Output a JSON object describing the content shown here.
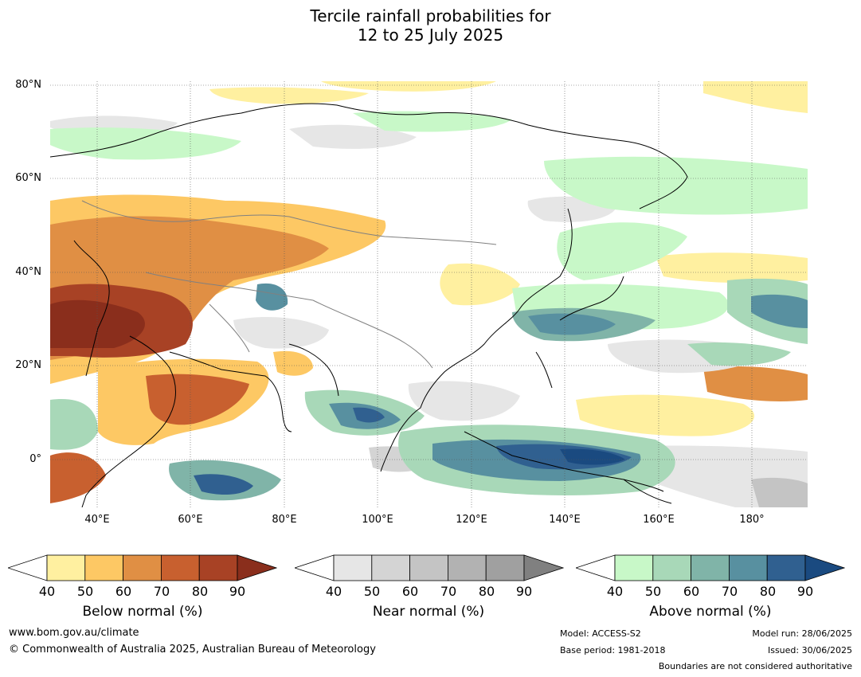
{
  "title": {
    "line1": "Tercile rainfall probabilities for",
    "line2": "12 to 25 July 2025"
  },
  "map": {
    "lat_labels": [
      "80°N",
      "60°N",
      "40°N",
      "20°N",
      "0°"
    ],
    "lon_labels": [
      "40°E",
      "60°E",
      "80°E",
      "100°E",
      "120°E",
      "140°E",
      "160°E",
      "180°"
    ],
    "extent": {
      "lon_min": 30,
      "lon_max": 192,
      "lat_min": -10,
      "lat_max": 81
    }
  },
  "colorbars": [
    {
      "id": "below",
      "title": "Below normal (%)",
      "ticks": [
        "40",
        "50",
        "60",
        "70",
        "80",
        "90"
      ],
      "colors": [
        "#fff0a0",
        "#fdc864",
        "#e08f44",
        "#c8602f",
        "#a84225",
        "#8a2e1c"
      ]
    },
    {
      "id": "near",
      "title": "Near normal (%)",
      "ticks": [
        "40",
        "50",
        "60",
        "70",
        "80",
        "90"
      ],
      "colors": [
        "#e6e6e6",
        "#d4d4d4",
        "#c4c4c4",
        "#b2b2b2",
        "#a0a0a0",
        "#808080"
      ]
    },
    {
      "id": "above",
      "title": "Above normal (%)",
      "ticks": [
        "40",
        "50",
        "60",
        "70",
        "80",
        "90"
      ],
      "colors": [
        "#c8f8c8",
        "#a8d8b8",
        "#80b4a8",
        "#5890a0",
        "#306090",
        "#1a4a80"
      ]
    }
  ],
  "footer": {
    "website": "www.bom.gov.au/climate",
    "copyright": "© Commonwealth of Australia 2025, Australian Bureau of Meteorology",
    "model": "Model: ACCESS-S2",
    "base_period": "Base period: 1981-2018",
    "model_run": "Model run: 28/06/2025",
    "issued": "Issued: 30/06/2025",
    "disclaimer": "Boundaries are not considered authoritative"
  }
}
